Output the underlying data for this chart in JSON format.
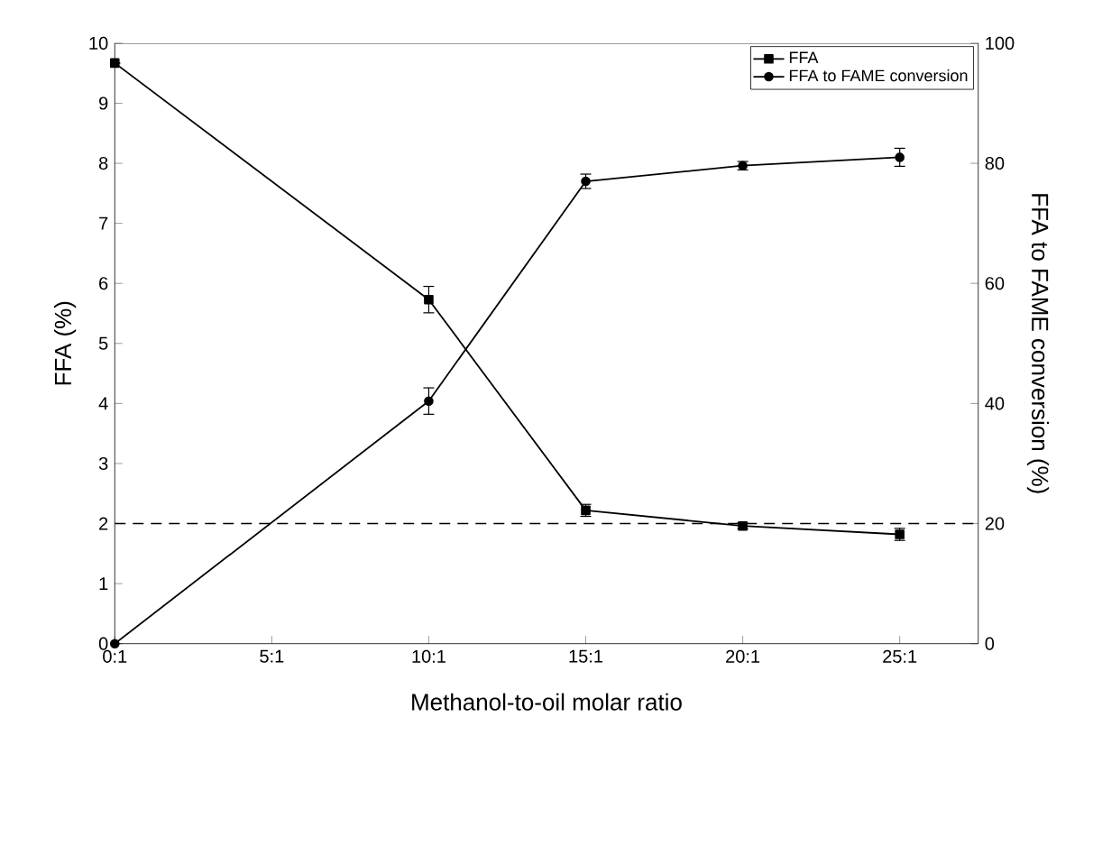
{
  "chart_data": {
    "type": "line",
    "xlabel": "Methanol-to-oil molar ratio",
    "ylabel": "FFA (%)",
    "y2label": "FFA to FAME conversion (%)",
    "categories": [
      "0:1",
      "5:1",
      "10:1",
      "15:1",
      "20:1",
      "25:1"
    ],
    "ylim": [
      0,
      10
    ],
    "yticks": [
      0,
      1,
      2,
      3,
      4,
      5,
      6,
      7,
      8,
      9,
      10
    ],
    "y2lim": [
      0,
      100
    ],
    "y2ticks": [
      0,
      20,
      40,
      60,
      80,
      100
    ],
    "series": [
      {
        "name": "FFA",
        "color": "#000000",
        "marker": "square",
        "values": [
          9.67,
          null,
          5.73,
          2.22,
          1.96,
          1.82
        ],
        "errors": [
          null,
          null,
          0.22,
          0.1,
          0.05,
          0.1
        ]
      },
      {
        "name": "FFA to FAME conversion",
        "color": "#000000",
        "marker": "circle",
        "axis": "y2",
        "values": [
          0,
          null,
          40.4,
          77,
          79.6,
          81
        ],
        "errors": [
          null,
          null,
          2.2,
          1.2,
          0.7,
          1.5
        ]
      }
    ],
    "ref_lines": [
      {
        "axis": "y",
        "value": 2,
        "color": "#000000",
        "line_style": "dashed"
      }
    ],
    "legend": "top right",
    "line_style": "solid",
    "grid": false
  }
}
